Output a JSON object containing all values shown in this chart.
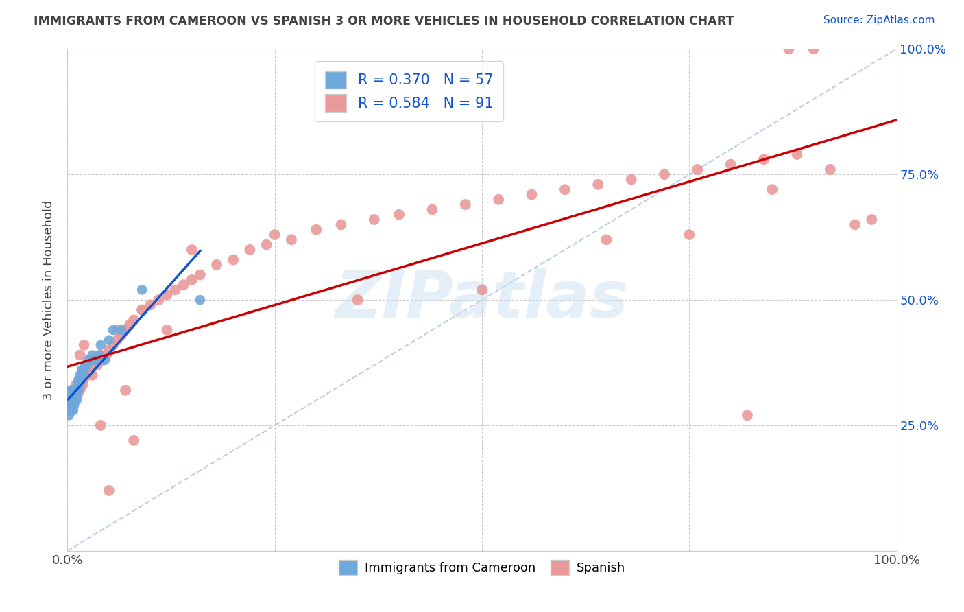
{
  "title": "IMMIGRANTS FROM CAMEROON VS SPANISH 3 OR MORE VEHICLES IN HOUSEHOLD CORRELATION CHART",
  "source": "Source: ZipAtlas.com",
  "ylabel": "3 or more Vehicles in Household",
  "xlim": [
    0,
    1.0
  ],
  "ylim": [
    0,
    1.0
  ],
  "xticklabels": [
    "0.0%",
    "",
    "",
    "",
    "100.0%"
  ],
  "yticklabels": [
    "",
    "25.0%",
    "50.0%",
    "75.0%",
    "100.0%"
  ],
  "right_yticklabels": [
    "",
    "25.0%",
    "50.0%",
    "75.0%",
    "100.0%"
  ],
  "watermark": "ZIPatlas",
  "legend1_label": "Immigrants from Cameroon",
  "legend2_label": "Spanish",
  "R1": "0.370",
  "N1": "57",
  "R2": "0.584",
  "N2": "91",
  "color1": "#6fa8dc",
  "color2": "#ea9999",
  "trendline1_color": "#1155cc",
  "trendline2_color": "#cc0000",
  "diagonal_color": "#b4c7e7",
  "grid_color": "#cccccc",
  "title_color": "#434343",
  "right_axis_color": "#1155cc",
  "cam_x": [
    0.001,
    0.002,
    0.002,
    0.002,
    0.003,
    0.003,
    0.003,
    0.003,
    0.004,
    0.004,
    0.004,
    0.004,
    0.004,
    0.005,
    0.005,
    0.005,
    0.005,
    0.006,
    0.006,
    0.006,
    0.006,
    0.007,
    0.007,
    0.007,
    0.007,
    0.008,
    0.008,
    0.009,
    0.009,
    0.01,
    0.01,
    0.011,
    0.011,
    0.012,
    0.012,
    0.013,
    0.013,
    0.014,
    0.015,
    0.016,
    0.017,
    0.018,
    0.02,
    0.021,
    0.023,
    0.025,
    0.028,
    0.03,
    0.033,
    0.038,
    0.04,
    0.045,
    0.05,
    0.055,
    0.065,
    0.09,
    0.16
  ],
  "cam_y": [
    0.28,
    0.27,
    0.29,
    0.3,
    0.28,
    0.29,
    0.3,
    0.31,
    0.28,
    0.29,
    0.3,
    0.31,
    0.32,
    0.28,
    0.3,
    0.31,
    0.32,
    0.28,
    0.29,
    0.31,
    0.32,
    0.28,
    0.3,
    0.31,
    0.32,
    0.29,
    0.31,
    0.3,
    0.32,
    0.3,
    0.31,
    0.3,
    0.32,
    0.31,
    0.33,
    0.32,
    0.34,
    0.33,
    0.35,
    0.34,
    0.36,
    0.35,
    0.36,
    0.37,
    0.37,
    0.38,
    0.38,
    0.39,
    0.38,
    0.39,
    0.41,
    0.38,
    0.42,
    0.44,
    0.44,
    0.52,
    0.5
  ],
  "spa_x": [
    0.001,
    0.002,
    0.003,
    0.004,
    0.005,
    0.005,
    0.006,
    0.007,
    0.008,
    0.009,
    0.01,
    0.011,
    0.012,
    0.013,
    0.014,
    0.015,
    0.016,
    0.017,
    0.018,
    0.019,
    0.02,
    0.022,
    0.024,
    0.026,
    0.028,
    0.03,
    0.033,
    0.036,
    0.04,
    0.043,
    0.047,
    0.05,
    0.055,
    0.06,
    0.065,
    0.07,
    0.075,
    0.08,
    0.09,
    0.1,
    0.11,
    0.12,
    0.13,
    0.14,
    0.15,
    0.16,
    0.18,
    0.2,
    0.22,
    0.24,
    0.27,
    0.3,
    0.33,
    0.37,
    0.4,
    0.44,
    0.48,
    0.52,
    0.56,
    0.6,
    0.64,
    0.68,
    0.72,
    0.76,
    0.8,
    0.84,
    0.88,
    0.92,
    0.95,
    0.97,
    0.15,
    0.25,
    0.35,
    0.5,
    0.65,
    0.75,
    0.82,
    0.87,
    0.9,
    0.85,
    0.06,
    0.09,
    0.12,
    0.08,
    0.05,
    0.07,
    0.04,
    0.03,
    0.02,
    0.015,
    0.01
  ],
  "spa_y": [
    0.28,
    0.29,
    0.3,
    0.29,
    0.3,
    0.31,
    0.3,
    0.31,
    0.32,
    0.3,
    0.31,
    0.32,
    0.31,
    0.32,
    0.33,
    0.32,
    0.33,
    0.34,
    0.33,
    0.34,
    0.35,
    0.36,
    0.35,
    0.37,
    0.36,
    0.37,
    0.38,
    0.37,
    0.39,
    0.38,
    0.39,
    0.4,
    0.41,
    0.42,
    0.43,
    0.44,
    0.45,
    0.46,
    0.48,
    0.49,
    0.5,
    0.51,
    0.52,
    0.53,
    0.54,
    0.55,
    0.57,
    0.58,
    0.6,
    0.61,
    0.62,
    0.64,
    0.65,
    0.66,
    0.67,
    0.68,
    0.69,
    0.7,
    0.71,
    0.72,
    0.73,
    0.74,
    0.75,
    0.76,
    0.77,
    0.78,
    0.79,
    0.76,
    0.65,
    0.66,
    0.6,
    0.63,
    0.5,
    0.52,
    0.62,
    0.63,
    0.27,
    1.0,
    1.0,
    0.72,
    0.44,
    0.48,
    0.44,
    0.22,
    0.12,
    0.32,
    0.25,
    0.35,
    0.41,
    0.39,
    0.33
  ]
}
